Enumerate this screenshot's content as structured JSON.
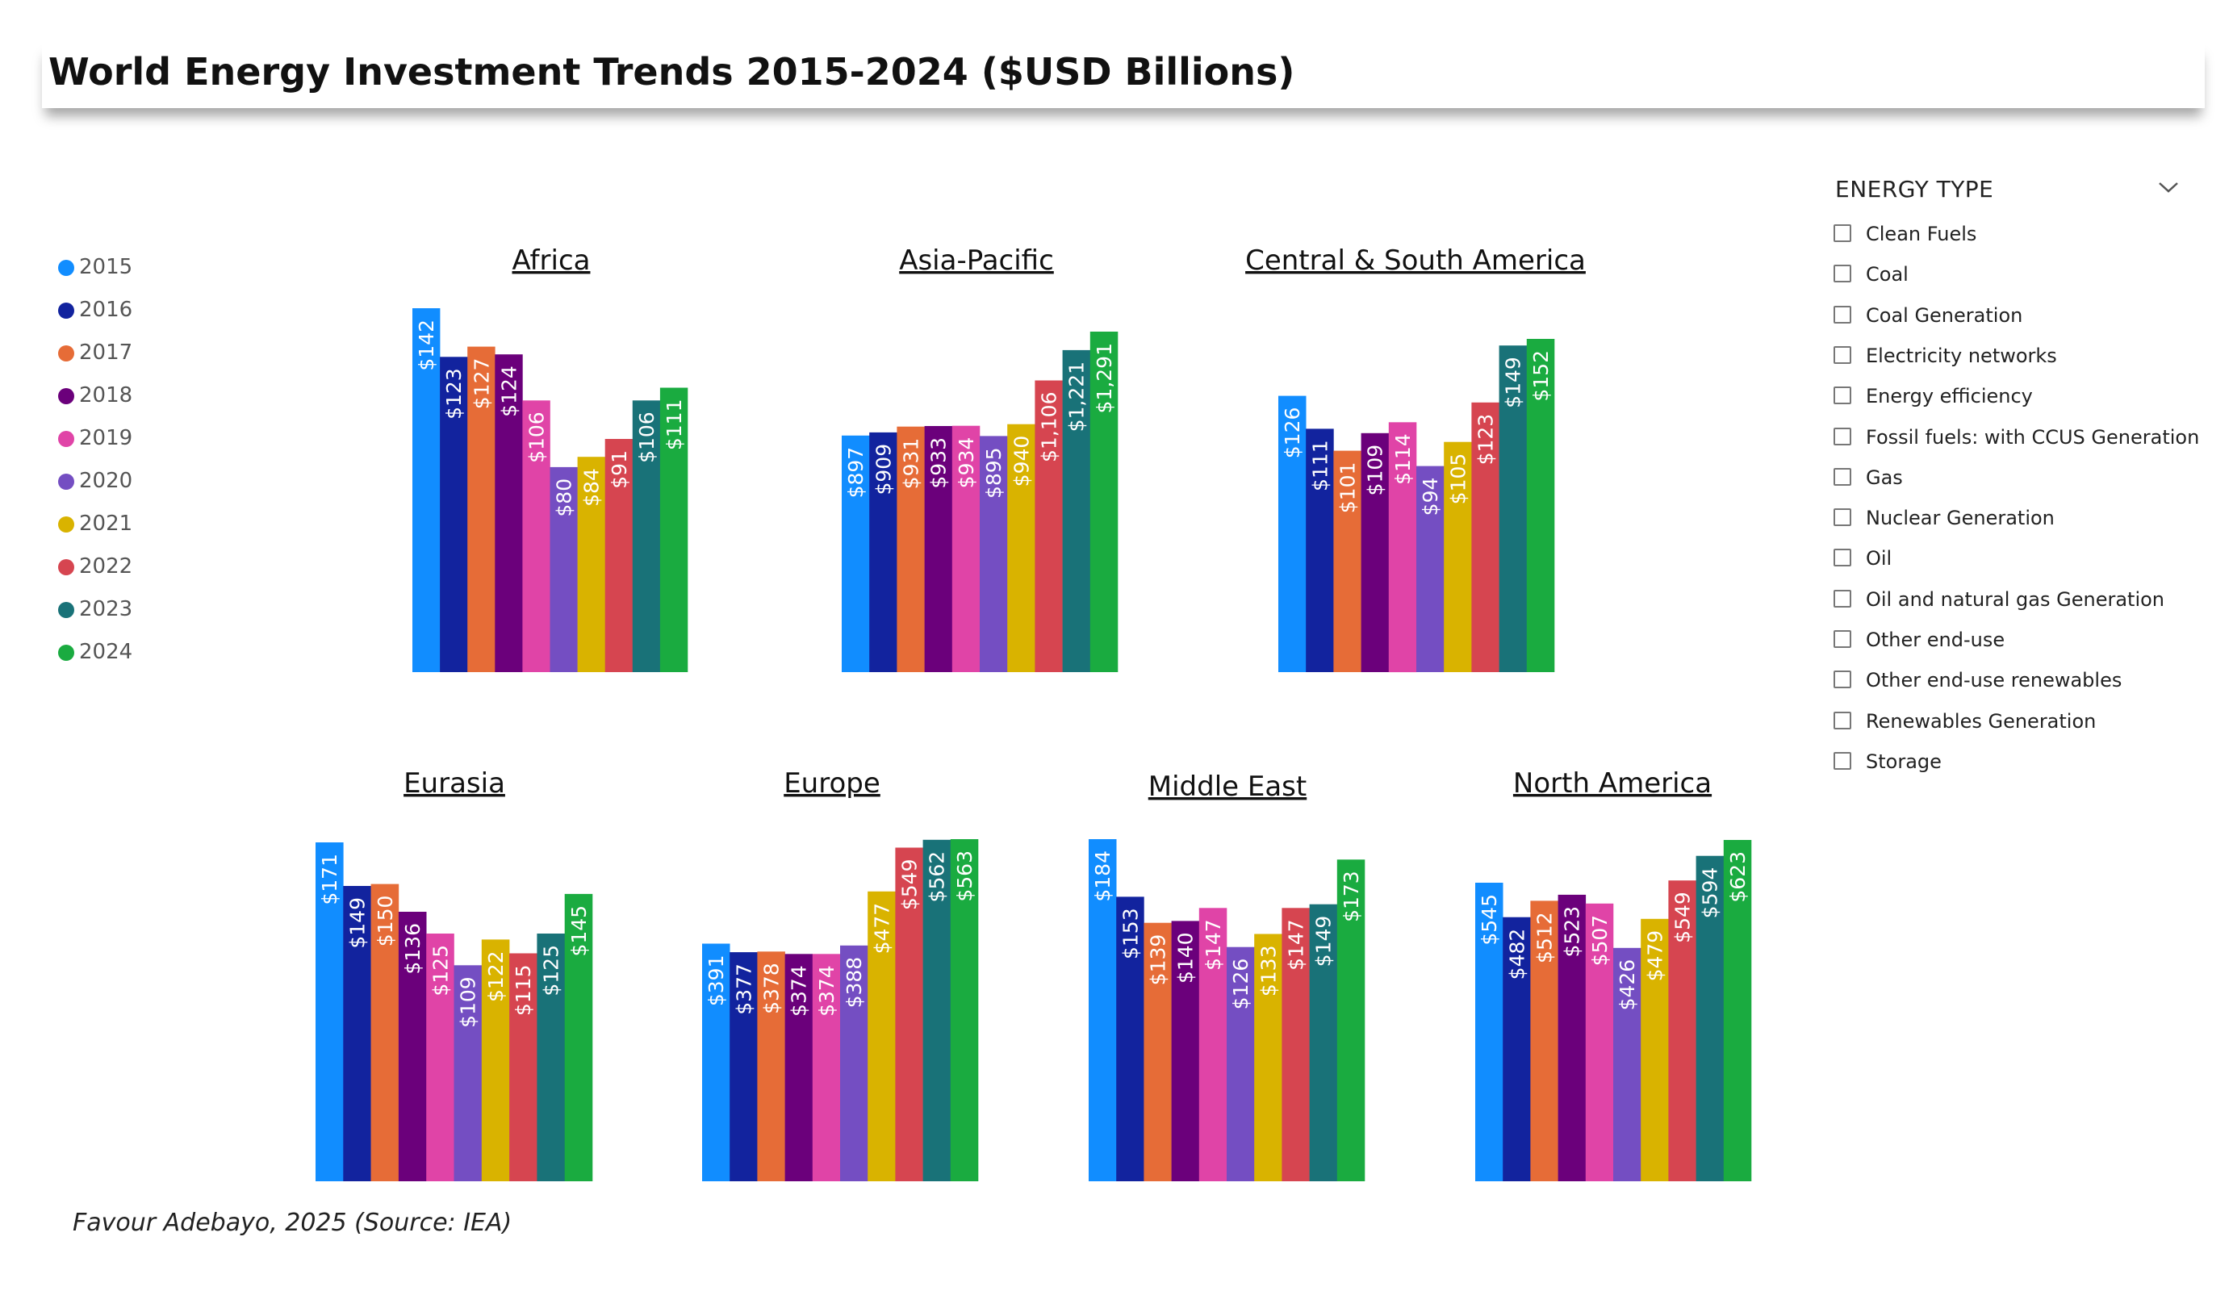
{
  "title": "World Energy Investment Trends 2015-2024 ($USD Billions)",
  "credit": "Favour Adebayo, 2025  (Source: IEA)",
  "legend": [
    {
      "label": "2015",
      "color": "#118DFF"
    },
    {
      "label": "2016",
      "color": "#12239E"
    },
    {
      "label": "2017",
      "color": "#E66C37"
    },
    {
      "label": "2018",
      "color": "#6B007B"
    },
    {
      "label": "2019",
      "color": "#E044A7"
    },
    {
      "label": "2020",
      "color": "#744EC2"
    },
    {
      "label": "2021",
      "color": "#D9B300"
    },
    {
      "label": "2022",
      "color": "#D64550"
    },
    {
      "label": "2023",
      "color": "#197278"
    },
    {
      "label": "2024",
      "color": "#1AAB40"
    }
  ],
  "slicer": {
    "title": "ENERGY TYPE",
    "chevron_icon": "chevron-down-icon",
    "options": [
      "Clean Fuels",
      "Coal",
      "Coal Generation",
      "Electricity networks",
      "Energy efficiency",
      "Fossil fuels: with CCUS Generation",
      "Gas",
      "Nuclear Generation",
      "Oil",
      "Oil and natural gas Generation",
      "Other end-use",
      "Other end-use renewables",
      "Renewables Generation",
      "Storage"
    ]
  },
  "chart_data": [
    {
      "type": "bar",
      "title": "Africa",
      "categories": [
        "2015",
        "2016",
        "2017",
        "2018",
        "2019",
        "2020",
        "2021",
        "2022",
        "2023",
        "2024"
      ],
      "values": [
        142,
        123,
        127,
        124,
        106,
        80,
        84,
        91,
        106,
        111
      ],
      "data_labels": [
        "$142",
        "$123",
        "$127",
        "$124",
        "$106",
        "$80",
        "$84",
        "$91",
        "$106",
        "$111"
      ],
      "xlabel": "",
      "ylabel": ""
    },
    {
      "type": "bar",
      "title": "Asia-Pacific",
      "categories": [
        "2015",
        "2016",
        "2017",
        "2018",
        "2019",
        "2020",
        "2021",
        "2022",
        "2023",
        "2024"
      ],
      "values": [
        897,
        909,
        931,
        933,
        934,
        895,
        940,
        1106,
        1221,
        1291
      ],
      "data_labels": [
        "$897",
        "$909",
        "$931",
        "$933",
        "$934",
        "$895",
        "$940",
        "$1,106",
        "$1,221",
        "$1,291"
      ],
      "xlabel": "",
      "ylabel": ""
    },
    {
      "type": "bar",
      "title": "Central & South America",
      "categories": [
        "2015",
        "2016",
        "2017",
        "2018",
        "2019",
        "2020",
        "2021",
        "2022",
        "2023",
        "2024"
      ],
      "values": [
        126,
        111,
        101,
        109,
        114,
        94,
        105,
        123,
        149,
        152
      ],
      "data_labels": [
        "$126",
        "$111",
        "$101",
        "$109",
        "$114",
        "$94",
        "$105",
        "$123",
        "$149",
        "$152"
      ],
      "xlabel": "",
      "ylabel": ""
    },
    {
      "type": "bar",
      "title": "Eurasia",
      "categories": [
        "2015",
        "2016",
        "2017",
        "2018",
        "2019",
        "2020",
        "2021",
        "2022",
        "2023",
        "2024"
      ],
      "values": [
        171,
        149,
        150,
        136,
        125,
        109,
        122,
        115,
        125,
        145
      ],
      "data_labels": [
        "$171",
        "$149",
        "$150",
        "$136",
        "$125",
        "$109",
        "$122",
        "$115",
        "$125",
        "$145"
      ],
      "xlabel": "",
      "ylabel": ""
    },
    {
      "type": "bar",
      "title": "Europe",
      "categories": [
        "2015",
        "2016",
        "2017",
        "2018",
        "2019",
        "2020",
        "2021",
        "2022",
        "2023",
        "2024"
      ],
      "values": [
        391,
        377,
        378,
        374,
        374,
        388,
        477,
        549,
        562,
        563
      ],
      "data_labels": [
        "$391",
        "$377",
        "$378",
        "$374",
        "$374",
        "$388",
        "$477",
        "$549",
        "$562",
        "$563"
      ],
      "xlabel": "",
      "ylabel": ""
    },
    {
      "type": "bar",
      "title": "Middle East",
      "categories": [
        "2015",
        "2016",
        "2017",
        "2018",
        "2019",
        "2020",
        "2021",
        "2022",
        "2023",
        "2024"
      ],
      "values": [
        184,
        153,
        139,
        140,
        147,
        126,
        133,
        147,
        149,
        173
      ],
      "data_labels": [
        "$184",
        "$153",
        "$139",
        "$140",
        "$147",
        "$126",
        "$133",
        "$147",
        "$149",
        "$173"
      ],
      "xlabel": "",
      "ylabel": ""
    },
    {
      "type": "bar",
      "title": "North America",
      "categories": [
        "2015",
        "2016",
        "2017",
        "2018",
        "2019",
        "2020",
        "2021",
        "2022",
        "2023",
        "2024"
      ],
      "values": [
        545,
        482,
        512,
        523,
        507,
        426,
        479,
        549,
        594,
        623
      ],
      "data_labels": [
        "$545",
        "$482",
        "$512",
        "$523",
        "$507",
        "$426",
        "$479",
        "$549",
        "$594",
        "$623"
      ],
      "xlabel": "",
      "ylabel": ""
    }
  ]
}
